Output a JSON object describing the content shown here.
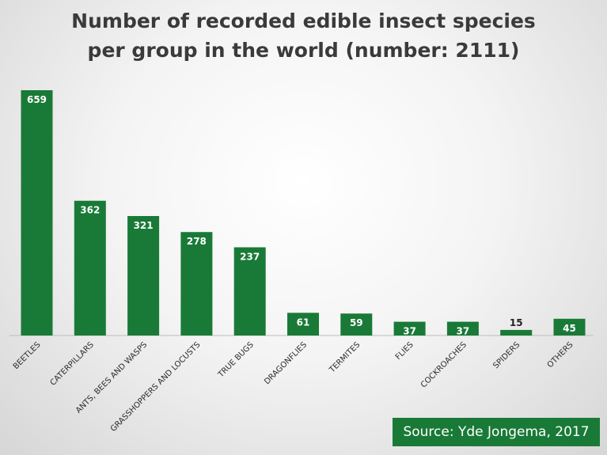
{
  "title": {
    "line1": "Number of recorded edible insect species",
    "line2": "per group in the world (number: 2111)"
  },
  "source": "Source: Yde Jongema, 2017",
  "colors": {
    "bar": "#197a37",
    "source_bg": "#197a37"
  },
  "chart_data": {
    "type": "bar",
    "title": "Number of recorded edible insect species per group in the world (number: 2111)",
    "categories": [
      "BEETLES",
      "CATERPILLARS",
      "ANTS, BEES AND WASPS",
      "GRASSHOPPERS AND LOCUSTS",
      "TRUE BUGS",
      "DRAGONFLIES",
      "TERMITES",
      "FLIES",
      "COCKROACHES",
      "SPIDERS",
      "OTHERS"
    ],
    "values": [
      659,
      362,
      321,
      278,
      237,
      61,
      59,
      37,
      37,
      15,
      45
    ],
    "data_labels": true,
    "grid": false,
    "ylim": [
      0,
      659
    ]
  }
}
